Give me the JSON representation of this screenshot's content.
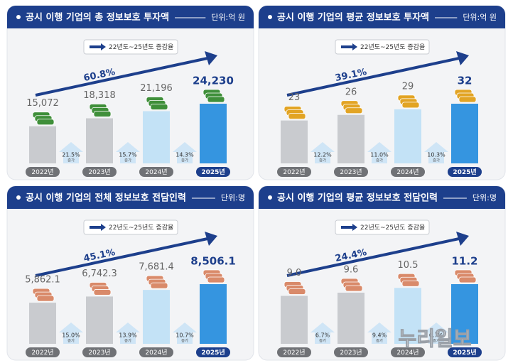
{
  "chart_data": [
    {
      "type": "bar",
      "title": "공시 이행 기업의 총 정보보호 투자액",
      "unit": "단위:억 원",
      "legend": "22년도~25년도 증감율",
      "total_growth": 60.8,
      "total_growth_label": "60.8%",
      "categories": [
        "2022년",
        "2023년",
        "2024년",
        "2025년"
      ],
      "values": [
        15072,
        18318,
        21196,
        24230
      ],
      "value_labels": [
        "15,072",
        "18,318",
        "21,196",
        "24,230"
      ],
      "growth": [
        21.5,
        15.7,
        14.3
      ],
      "growth_labels": [
        "21.5%",
        "15.7%",
        "14.3%"
      ],
      "growth_note": [
        "증가",
        "증가",
        "증가"
      ],
      "colors": [
        "#c9cbcf",
        "#c9cbcf",
        "#c3e2f6",
        "#3595e0"
      ]
    },
    {
      "type": "bar",
      "title": "공시 이행 기업의 평균 정보보호 투자액",
      "unit": "단위:억 원",
      "legend": "22년도~25년도 증감율",
      "total_growth": 39.1,
      "total_growth_label": "39.1%",
      "categories": [
        "2022년",
        "2023년",
        "2024년",
        "2025년"
      ],
      "values": [
        23,
        26,
        29,
        32
      ],
      "growth": [
        12.2,
        11.0,
        10.3
      ],
      "growth_labels": [
        "12.2%",
        "11.0%",
        "10.3%"
      ],
      "growth_note": [
        "증가",
        "증가",
        "증가"
      ],
      "colors": [
        "#c9cbcf",
        "#c9cbcf",
        "#c3e2f6",
        "#3595e0"
      ]
    },
    {
      "type": "bar",
      "title": "공시 이행 기업의 전체 정보보호 전담인력",
      "unit": "단위:명",
      "legend": "22년도~25년도 증감율",
      "total_growth": 45.1,
      "total_growth_label": "45.1%",
      "categories": [
        "2022년",
        "2023년",
        "2024년",
        "2025년"
      ],
      "values": [
        5862.1,
        6742.3,
        7681.4,
        8506.1
      ],
      "value_labels": [
        "5,862.1",
        "6,742.3",
        "7,681.4",
        "8,506.1"
      ],
      "growth": [
        15.0,
        13.9,
        10.7
      ],
      "growth_labels": [
        "15.0%",
        "13.9%",
        "10.7%"
      ],
      "growth_note": [
        "증가",
        "증가",
        "증가"
      ],
      "colors": [
        "#c9cbcf",
        "#c9cbcf",
        "#c3e2f6",
        "#3595e0"
      ]
    },
    {
      "type": "bar",
      "title": "공시 이행 기업의 평균 정보보호 전담인력",
      "unit": "단위:명",
      "legend": "22년도~25년도 증감율",
      "total_growth": 24.4,
      "total_growth_label": "24.4%",
      "categories": [
        "2022년",
        "2023년",
        "2024년",
        "2025년"
      ],
      "values": [
        9,
        9.6,
        10.5,
        11.2
      ],
      "value_labels": [
        "9.0",
        "9.6",
        "10.5",
        "11.2"
      ],
      "growth": [
        6.7,
        9.4,
        6.7
      ],
      "growth_labels": [
        "6.7%",
        "9.4%",
        "6.7%"
      ],
      "growth_note": [
        "증가",
        "증가",
        "증가"
      ],
      "colors": [
        "#c9cbcf",
        "#c9cbcf",
        "#c3e2f6",
        "#3595e0"
      ]
    }
  ],
  "watermark": "누리일보"
}
